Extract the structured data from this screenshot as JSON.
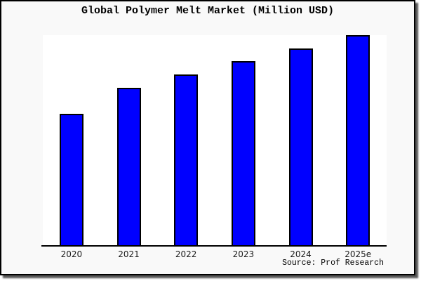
{
  "chart_data": {
    "type": "bar",
    "title": "Global Polymer Melt Market (Million USD)",
    "categories": [
      "2020",
      "2021",
      "2022",
      "2023",
      "2024",
      "2025e"
    ],
    "values": [
      62.5,
      74.9,
      81.3,
      87.6,
      93.6,
      100
    ],
    "values_note": "y-axis has no tick labels; values estimated from bar heights as percent of the 2025e bar",
    "xlabel": "",
    "ylabel": "",
    "ylim": [
      0,
      100
    ],
    "grid": false,
    "legend": false,
    "source_caption": "Source: Prof Research",
    "colors": {
      "bar_fill": "#0000ff",
      "bar_border": "#000000",
      "plot_bg": "#ffffff",
      "canvas_bg": "#f9f9f9",
      "axis": "#000000",
      "frame_border": "#000000",
      "title_text": "#000000",
      "label_text": "#1a1a1a"
    }
  }
}
